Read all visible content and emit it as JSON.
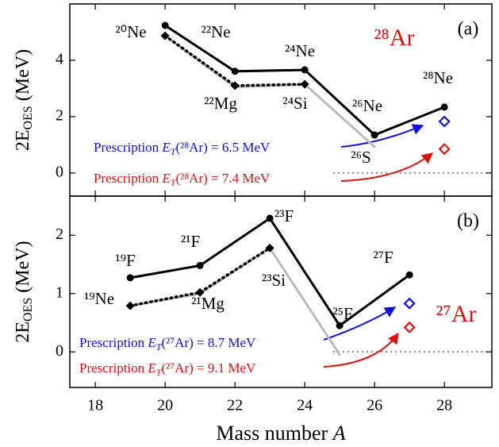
{
  "chart_data": [
    {
      "type": "line",
      "panel_label": "(a)",
      "nucleus": "²⁸Ar",
      "ylabel": {
        "main": "2E",
        "sub": "OES",
        "unit": " (MeV)"
      },
      "xlim": [
        17.27,
        29.36
      ],
      "xticks": [
        18,
        20,
        22,
        24,
        26,
        28
      ],
      "ylim": [
        -0.82,
        6.0
      ],
      "yticks": [
        0,
        2,
        4
      ],
      "series": [
        {
          "color": "#bbbbbb",
          "style": "solid",
          "marker": "none",
          "x": [
            20,
            22,
            24,
            26
          ],
          "values": [
            4.87,
            3.05,
            3.15,
            0.93
          ]
        },
        {
          "color": "#000000",
          "style": "solid",
          "marker": "circle",
          "x": [
            20,
            22,
            24,
            26,
            28
          ],
          "values": [
            5.24,
            3.61,
            3.66,
            1.35,
            2.34
          ]
        },
        {
          "color": "#000000",
          "style": "dotted",
          "marker": "diamond",
          "x": [
            20,
            22,
            24
          ],
          "values": [
            4.87,
            3.1,
            3.15
          ]
        },
        {
          "color": "#1010e0",
          "style": "solid",
          "marker": "open-diamond",
          "x": [
            28
          ],
          "values": [
            1.83
          ]
        },
        {
          "color": "#e01010",
          "style": "solid",
          "marker": "open-diamond",
          "x": [
            28
          ],
          "values": [
            0.85
          ]
        }
      ],
      "annotations": [
        "²⁰Ne",
        "²²Ne",
        "²⁴Ne",
        "²²Mg",
        "²⁴Si",
        "²⁶Ne",
        "²⁶S",
        "²⁸Ne"
      ],
      "prescriptions": [
        {
          "color": "#1010e0",
          "prefix": "Prescription ",
          "var": "E",
          "sub": "T",
          "rest": "(²⁸Ar) = 6.5 MeV"
        },
        {
          "color": "#e01010",
          "prefix": "Prescription ",
          "var": "E",
          "sub": "T",
          "rest": "(²⁸Ar) = 7.4 MeV"
        }
      ]
    },
    {
      "type": "line",
      "panel_label": "(b)",
      "nucleus": "²⁷Ar",
      "ylabel": {
        "main": "2E",
        "sub": "OES",
        "unit": " (MeV)"
      },
      "xlabel": {
        "main": "Mass number ",
        "var": "A"
      },
      "xlim": [
        17.27,
        29.36
      ],
      "xticks": [
        18,
        20,
        22,
        24,
        26,
        28
      ],
      "ylim": [
        -0.61,
        2.67
      ],
      "yticks": [
        0,
        1,
        2
      ],
      "series": [
        {
          "color": "#bbbbbb",
          "style": "solid",
          "marker": "none",
          "x": [
            19,
            21,
            23,
            25
          ],
          "values": [
            0.79,
            1.0,
            1.78,
            -0.05
          ]
        },
        {
          "color": "#000000",
          "style": "solid",
          "marker": "circle",
          "x": [
            19,
            21,
            23,
            25,
            27
          ],
          "values": [
            1.27,
            1.48,
            2.29,
            0.45,
            1.32
          ]
        },
        {
          "color": "#000000",
          "style": "dotted",
          "marker": "diamond",
          "x": [
            19,
            21,
            23
          ],
          "values": [
            0.79,
            1.02,
            1.78
          ]
        },
        {
          "color": "#1010e0",
          "style": "solid",
          "marker": "open-diamond",
          "x": [
            27
          ],
          "values": [
            0.83
          ]
        },
        {
          "color": "#e01010",
          "style": "solid",
          "marker": "open-diamond",
          "x": [
            27
          ],
          "values": [
            0.42
          ]
        }
      ],
      "annotations": [
        "¹⁹F",
        "²¹F",
        "²³F",
        "¹⁹Ne",
        "²¹Mg",
        "²³Si",
        "²⁵F",
        "²⁷F"
      ],
      "prescriptions": [
        {
          "color": "#1010e0",
          "prefix": "Prescription ",
          "var": "E",
          "sub": "T",
          "rest": "(²⁷Ar) = 8.7 MeV"
        },
        {
          "color": "#e01010",
          "prefix": "Prescription ",
          "var": "E",
          "sub": "T",
          "rest": "(²⁷Ar) = 9.1 MeV"
        }
      ]
    }
  ]
}
